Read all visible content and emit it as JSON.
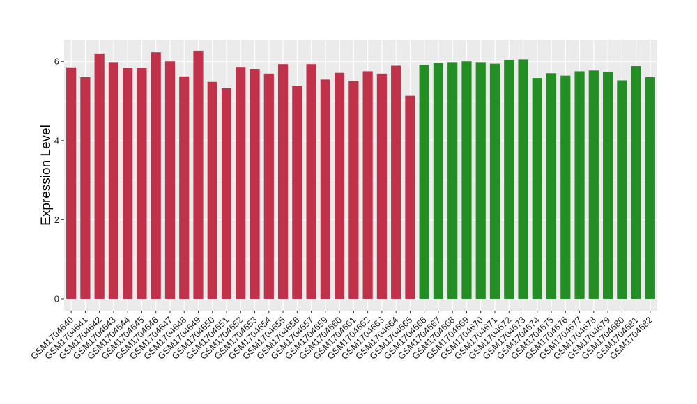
{
  "chart_data": {
    "type": "bar",
    "xlabel": "",
    "ylabel": "Expression Level",
    "ylim": [
      -0.3,
      6.55
    ],
    "yticks": [
      0,
      2,
      4,
      6
    ],
    "grid": true,
    "legend": "none",
    "colors": {
      "group1": "#c0314a",
      "group2": "#238e23",
      "panel": "#ebebeb",
      "gridline": "#ffffff"
    },
    "categories": [
      "GSM1704640",
      "GSM1704641",
      "GSM1704642",
      "GSM1704643",
      "GSM1704644",
      "GSM1704645",
      "GSM1704646",
      "GSM1704647",
      "GSM1704648",
      "GSM1704649",
      "GSM1704650",
      "GSM1704651",
      "GSM1704652",
      "GSM1704653",
      "GSM1704654",
      "GSM1704655",
      "GSM1704656",
      "GSM1704657",
      "GSM1704659",
      "GSM1704660",
      "GSM1704661",
      "GSM1704662",
      "GSM1704663",
      "GSM1704664",
      "GSM1704665",
      "GSM1704666",
      "GSM1704667",
      "GSM1704668",
      "GSM1704669",
      "GSM1704670",
      "GSM1704671",
      "GSM1704672",
      "GSM1704673",
      "GSM1704674",
      "GSM1704675",
      "GSM1704676",
      "GSM1704677",
      "GSM1704678",
      "GSM1704679",
      "GSM1704680",
      "GSM1704681",
      "GSM1704682"
    ],
    "values": [
      5.85,
      5.6,
      6.2,
      5.98,
      5.84,
      5.83,
      6.23,
      6.0,
      5.62,
      6.27,
      5.48,
      5.32,
      5.86,
      5.81,
      5.69,
      5.93,
      5.37,
      5.93,
      5.54,
      5.71,
      5.5,
      5.75,
      5.69,
      5.89,
      5.13,
      5.91,
      5.96,
      5.98,
      6.0,
      5.98,
      5.94,
      6.04,
      6.05,
      5.58,
      5.7,
      5.64,
      5.75,
      5.77,
      5.73,
      5.52,
      5.88,
      5.6
    ],
    "groups": [
      1,
      1,
      1,
      1,
      1,
      1,
      1,
      1,
      1,
      1,
      1,
      1,
      1,
      1,
      1,
      1,
      1,
      1,
      1,
      1,
      1,
      1,
      1,
      1,
      1,
      2,
      2,
      2,
      2,
      2,
      2,
      2,
      2,
      2,
      2,
      2,
      2,
      2,
      2,
      2,
      2,
      2
    ]
  }
}
